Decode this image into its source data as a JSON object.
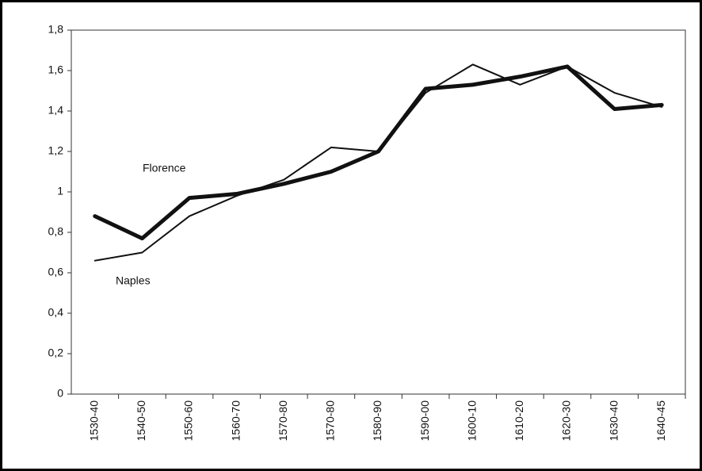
{
  "chart_data": {
    "type": "line",
    "categories": [
      "1530-40",
      "1540-50",
      "1550-60",
      "1560-70",
      "1570-80",
      "1570-80",
      "1580-90",
      "1590-00",
      "1600-10",
      "1610-20",
      "1620-30",
      "1630-40",
      "1640-45"
    ],
    "series": [
      {
        "name": "Florence",
        "color": "#111111",
        "width": 5,
        "values": [
          0.88,
          0.77,
          0.97,
          0.99,
          1.04,
          1.1,
          1.2,
          1.51,
          1.53,
          1.57,
          1.62,
          1.41,
          1.43
        ]
      },
      {
        "name": "Naples",
        "color": "#111111",
        "width": 2,
        "values": [
          0.66,
          0.7,
          0.88,
          0.98,
          1.06,
          1.22,
          1.2,
          1.49,
          1.63,
          1.53,
          1.62,
          1.49,
          1.42
        ]
      }
    ],
    "ylim": [
      0,
      1.8
    ],
    "yticks": [
      0,
      {
        "value": 0.2,
        "label": "0,2"
      },
      {
        "value": 0.4,
        "label": "0,4"
      },
      {
        "value": 0.6,
        "label": "0,6"
      },
      {
        "value": 0.8,
        "label": "0,8"
      },
      1,
      {
        "value": 1.2,
        "label": "1,2"
      },
      {
        "value": 1.4,
        "label": "1,4"
      },
      {
        "value": 1.6,
        "label": "1,6"
      },
      {
        "value": 1.8,
        "label": "1,8"
      }
    ],
    "grid": false
  }
}
